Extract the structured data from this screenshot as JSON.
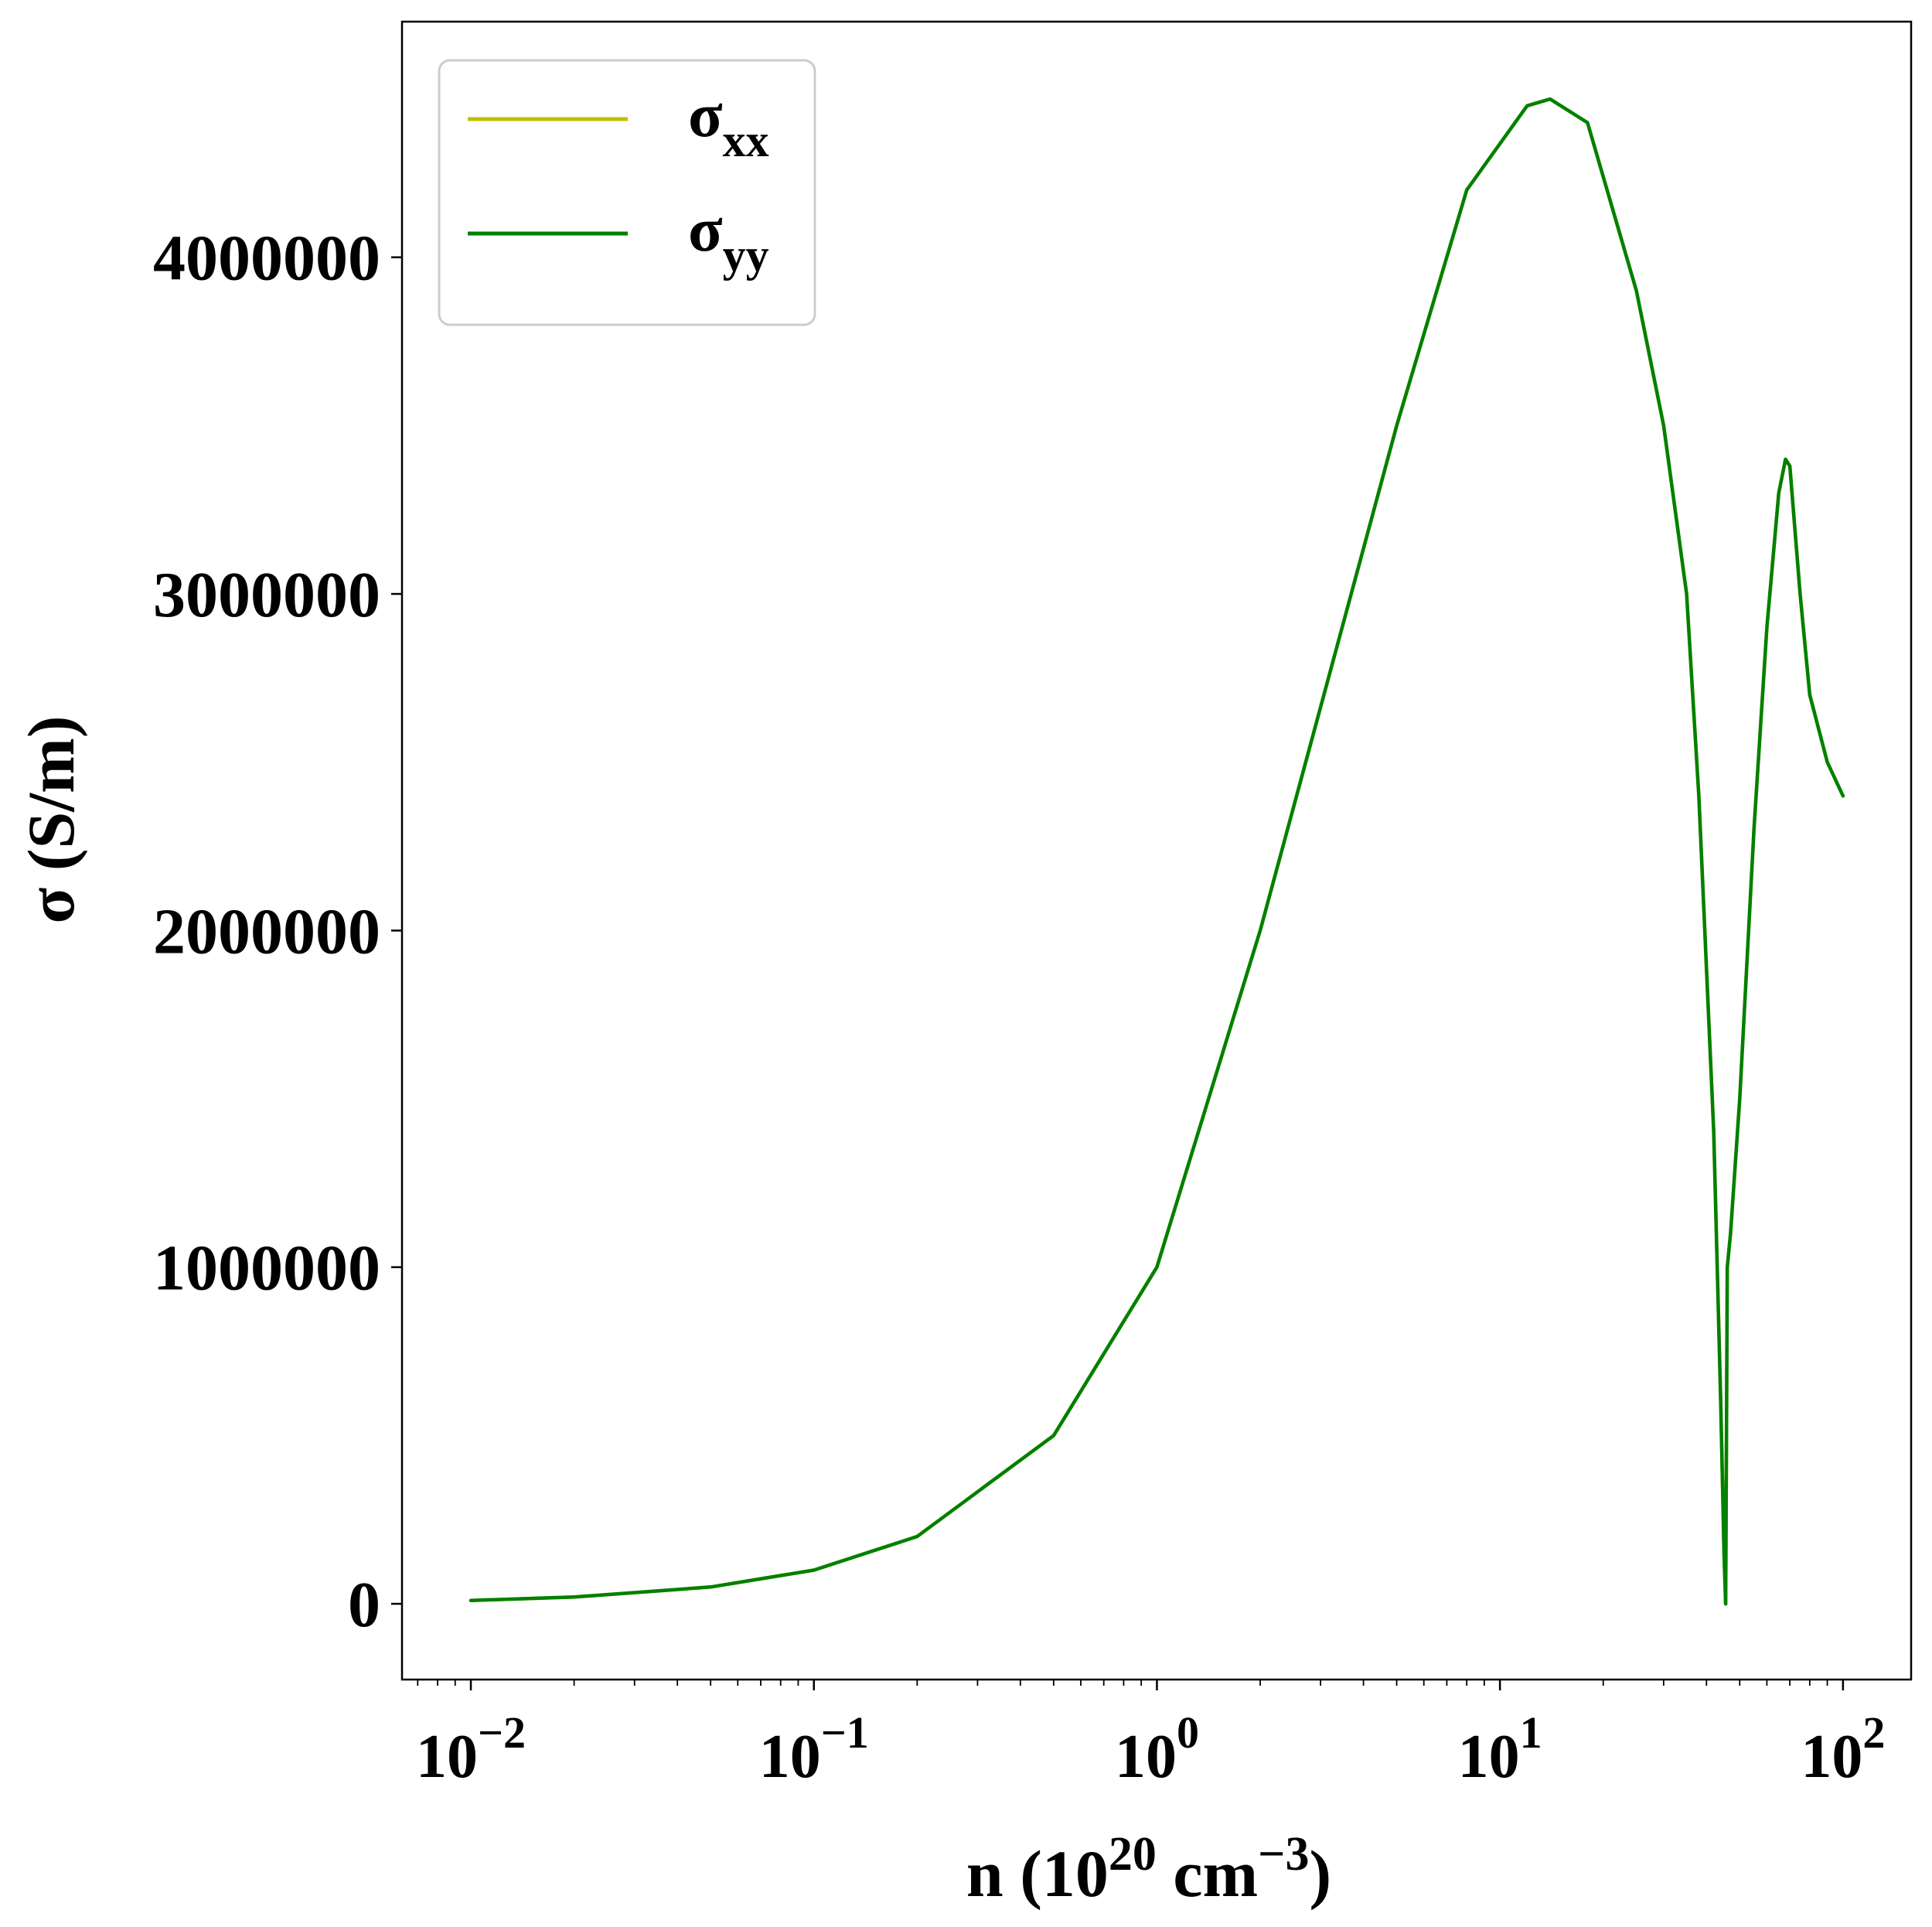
{
  "chart_data": {
    "type": "line",
    "title": "",
    "xlabel": "n (10",
    "xlabel_exp1": "20",
    "xlabel_mid": " cm",
    "xlabel_exp2": "−3",
    "xlabel_end": ")",
    "ylabel": "σ (S/m)",
    "xscale": "log",
    "xlim": [
      0.0063,
      158
    ],
    "ylim": [
      -225000,
      4700000
    ],
    "x_ticks": [
      {
        "base": "10",
        "exp": "−2"
      },
      {
        "base": "10",
        "exp": "−1"
      },
      {
        "base": "10",
        "exp": "0"
      },
      {
        "base": "10",
        "exp": "1"
      },
      {
        "base": "10",
        "exp": "2"
      }
    ],
    "y_ticks": [
      "0",
      "1000000",
      "2000000",
      "3000000",
      "4000000"
    ],
    "grid": false,
    "legend": {
      "position": "top-left",
      "entries": [
        {
          "symbol": "σ",
          "sub": "xx",
          "color": "#bfbf00"
        },
        {
          "symbol": "σ",
          "sub": "yy",
          "color": "#008000"
        }
      ]
    },
    "series": [
      {
        "name": "σxx",
        "color": "#bfbf00",
        "x": [
          0.01,
          0.02,
          0.05,
          0.1,
          0.2,
          0.5,
          1,
          2,
          5,
          8,
          12,
          14,
          18,
          25,
          30,
          35,
          38,
          42,
          44,
          45,
          45.5,
          46,
          47,
          50,
          55,
          60,
          65,
          68,
          70,
          75,
          80,
          90,
          100
        ],
        "y": [
          10000,
          20000,
          50000,
          100000,
          200000,
          500000,
          1000000,
          2000000,
          3500000,
          4200000,
          4450000,
          4470000,
          4400000,
          3900000,
          3500000,
          3000000,
          2400000,
          1400000,
          600000,
          150000,
          0,
          1000000,
          1100000,
          1500000,
          2300000,
          2900000,
          3300000,
          3400000,
          3380000,
          3000000,
          2700000,
          2500000,
          2400000
        ]
      },
      {
        "name": "σyy",
        "color": "#008000",
        "x": [
          0.01,
          0.02,
          0.05,
          0.1,
          0.2,
          0.5,
          1,
          2,
          5,
          8,
          12,
          14,
          18,
          25,
          30,
          35,
          38,
          42,
          44,
          45,
          45.5,
          46,
          47,
          50,
          55,
          60,
          65,
          68,
          70,
          75,
          80,
          90,
          100
        ],
        "y": [
          10000,
          20000,
          50000,
          100000,
          200000,
          500000,
          1000000,
          2000000,
          3500000,
          4200000,
          4450000,
          4470000,
          4400000,
          3900000,
          3500000,
          3000000,
          2400000,
          1400000,
          600000,
          150000,
          0,
          1000000,
          1100000,
          1500000,
          2300000,
          2900000,
          3300000,
          3400000,
          3380000,
          3000000,
          2700000,
          2500000,
          2400000
        ]
      }
    ]
  }
}
